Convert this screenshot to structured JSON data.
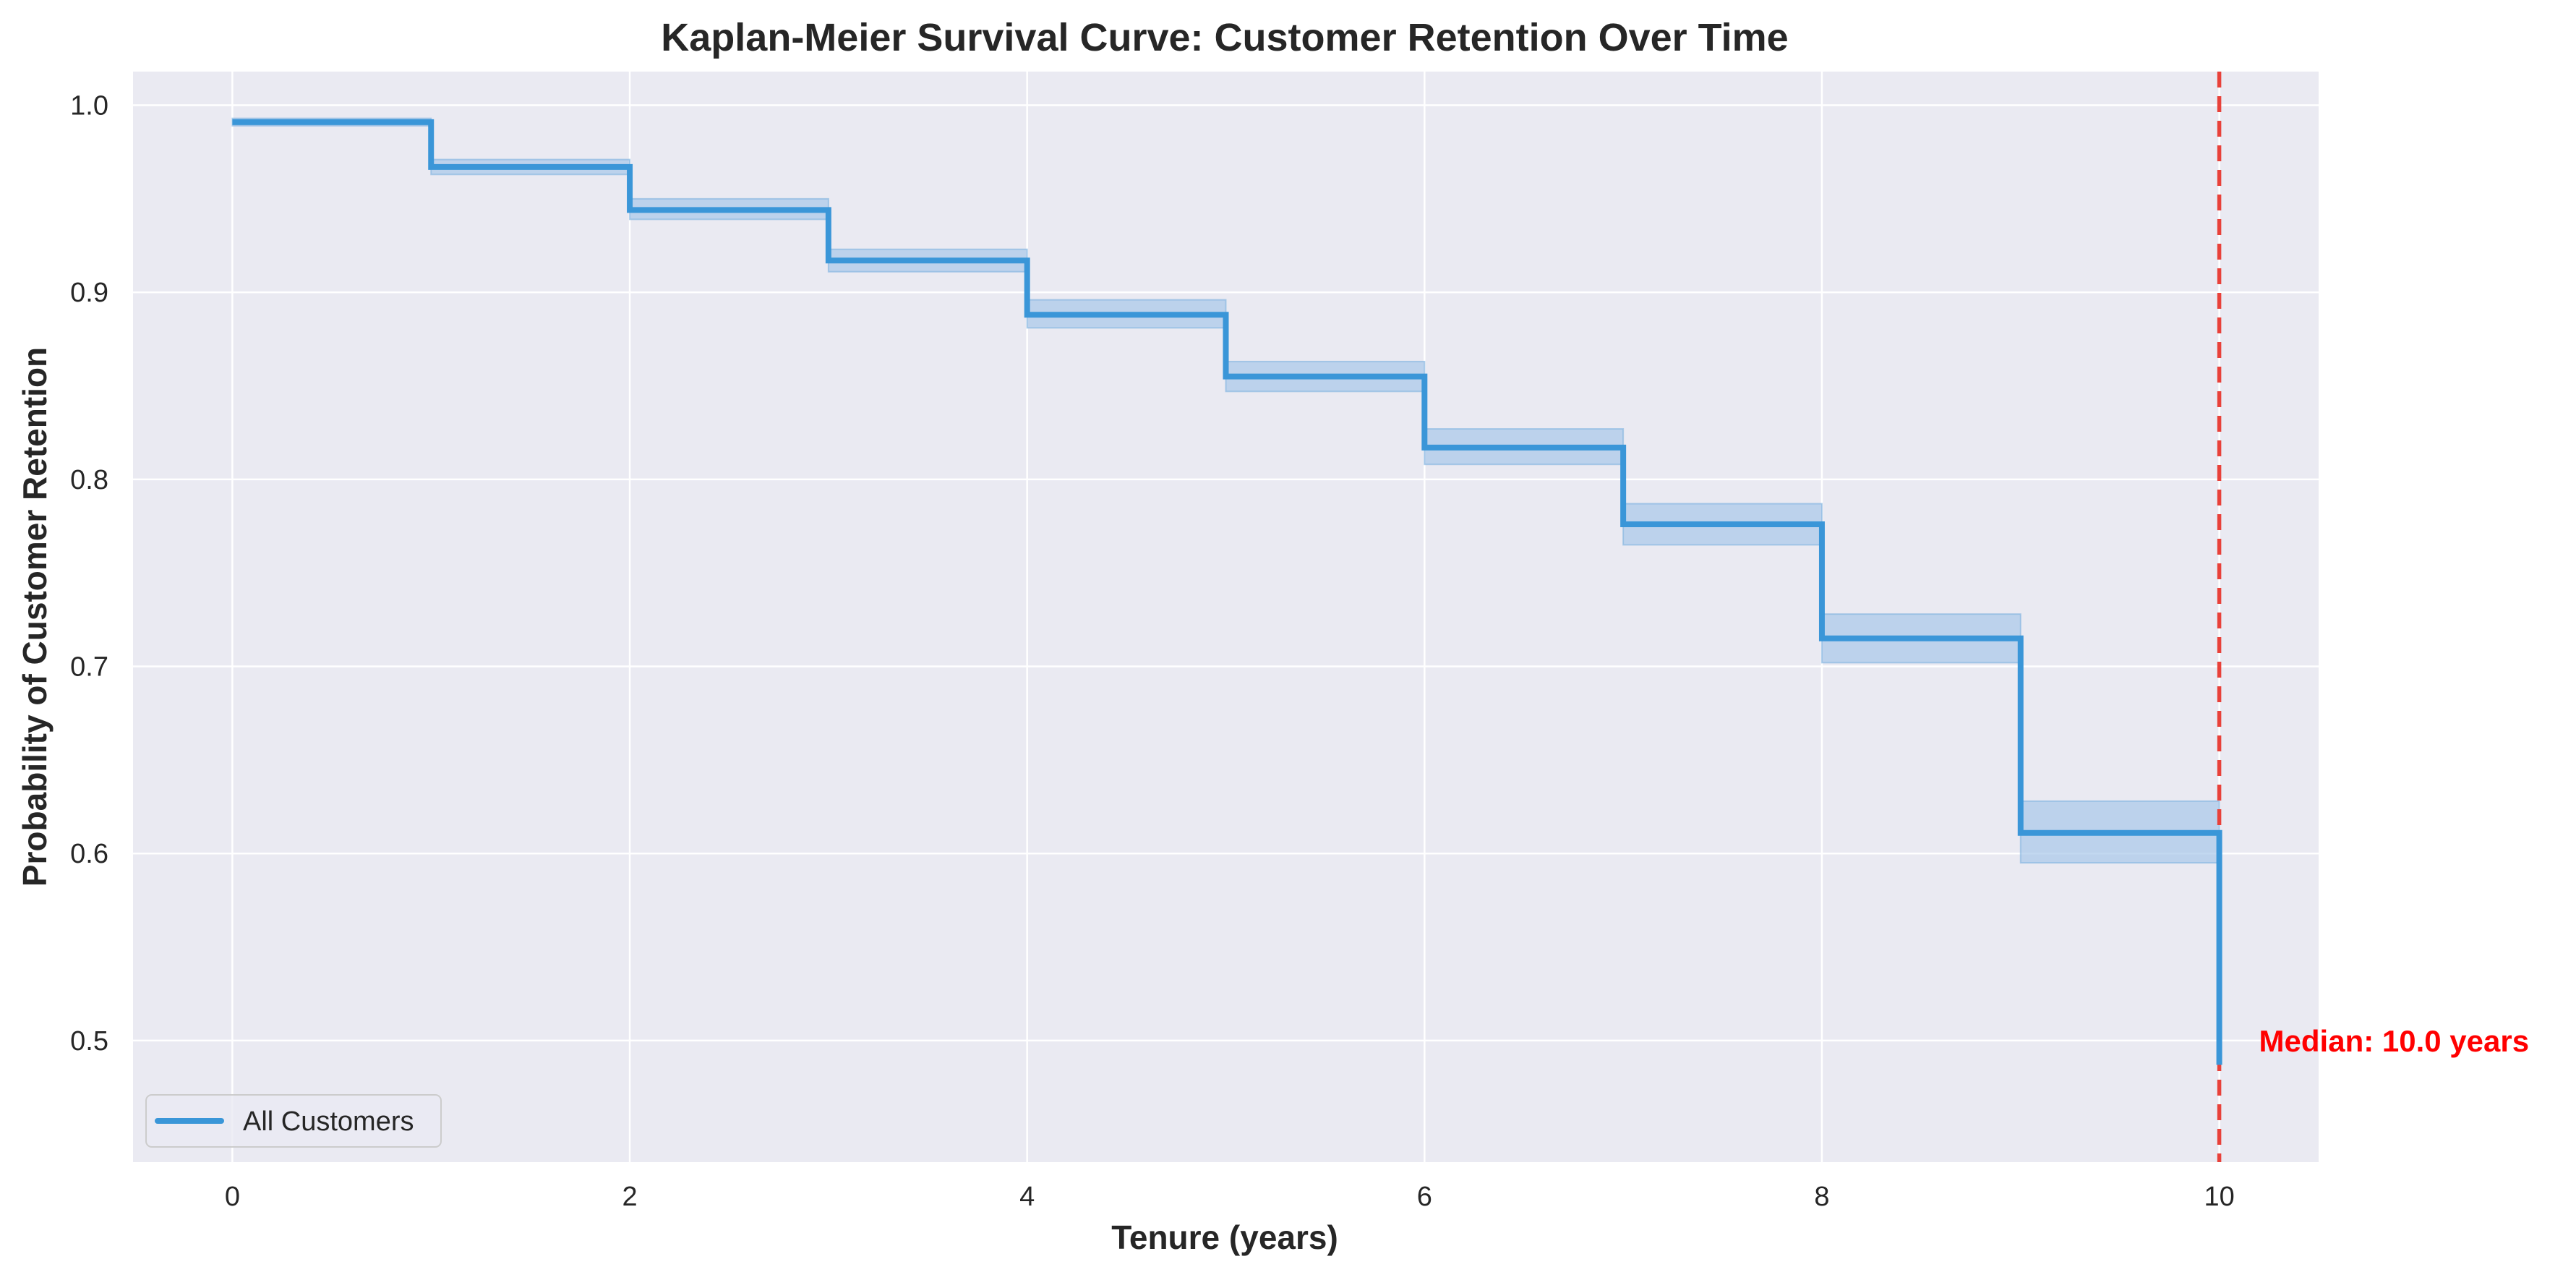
{
  "chart_data": {
    "type": "line",
    "subtype": "step",
    "title": "Kaplan-Meier Survival Curve: Customer Retention Over Time",
    "xlabel": "Tenure (years)",
    "ylabel": "Probability of Customer Retention",
    "xlim": [
      -0.5,
      10.5
    ],
    "ylim": [
      0.435,
      1.018
    ],
    "xticks": [
      0,
      2,
      4,
      6,
      8,
      10
    ],
    "xtick_labels": [
      "0",
      "2",
      "4",
      "6",
      "8",
      "10"
    ],
    "yticks": [
      0.5,
      0.6,
      0.7,
      0.8,
      0.9,
      1.0
    ],
    "ytick_labels": [
      "0.5",
      "0.6",
      "0.7",
      "0.8",
      "0.9",
      "1.0"
    ],
    "grid": true,
    "legend_position": "lower-left",
    "series": [
      {
        "name": "All Customers",
        "color": "#3a96d8",
        "steps": [
          {
            "x0": 0,
            "x1": 1,
            "y": 0.991,
            "lo": 0.989,
            "hi": 0.993
          },
          {
            "x0": 1,
            "x1": 2,
            "y": 0.967,
            "lo": 0.963,
            "hi": 0.971
          },
          {
            "x0": 2,
            "x1": 3,
            "y": 0.944,
            "lo": 0.939,
            "hi": 0.95
          },
          {
            "x0": 3,
            "x1": 4,
            "y": 0.917,
            "lo": 0.911,
            "hi": 0.923
          },
          {
            "x0": 4,
            "x1": 5,
            "y": 0.888,
            "lo": 0.881,
            "hi": 0.896
          },
          {
            "x0": 5,
            "x1": 6,
            "y": 0.855,
            "lo": 0.847,
            "hi": 0.863
          },
          {
            "x0": 6,
            "x1": 7,
            "y": 0.817,
            "lo": 0.808,
            "hi": 0.827
          },
          {
            "x0": 7,
            "x1": 8,
            "y": 0.776,
            "lo": 0.765,
            "hi": 0.787
          },
          {
            "x0": 8,
            "x1": 9,
            "y": 0.715,
            "lo": 0.702,
            "hi": 0.728
          },
          {
            "x0": 9,
            "x1": 10,
            "y": 0.611,
            "lo": 0.595,
            "hi": 0.628
          },
          {
            "x0": 10,
            "x1": 10,
            "y": 0.487,
            "lo": 0.487,
            "hi": 0.487
          }
        ]
      }
    ],
    "reference_line": {
      "x": 10,
      "color": "#e8413a",
      "style": "dashed"
    },
    "annotations": [
      {
        "text": "Median: 10.0 years",
        "x": 10.2,
        "y": 0.5,
        "color": "#ff0000"
      }
    ],
    "colors": {
      "plot_background": "#eaeaf2",
      "grid": "#ffffff",
      "ci_fill": "#a8c8ea",
      "text": "#262626"
    }
  }
}
